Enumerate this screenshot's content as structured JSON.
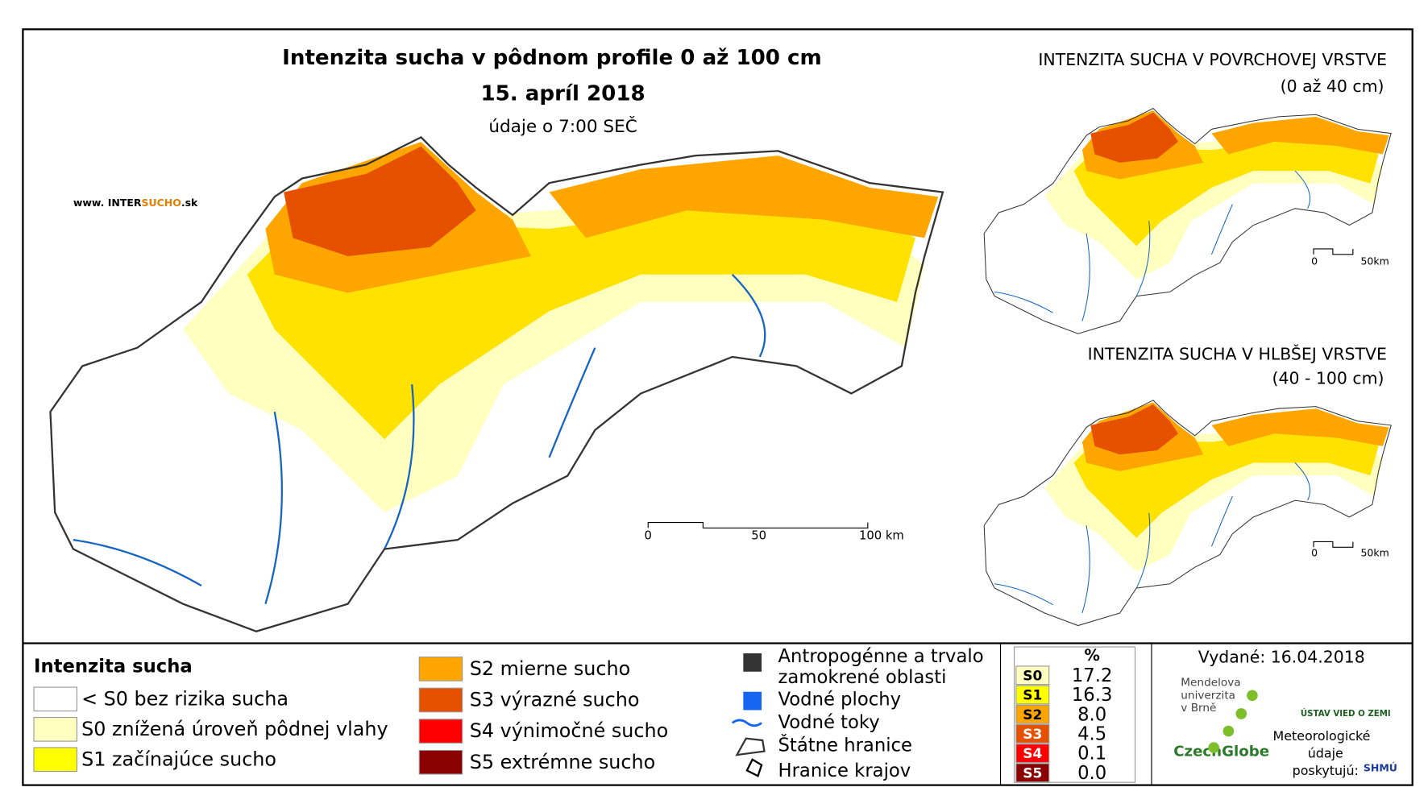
{
  "title": "Intenzita sucha v pôdnom profile 0 až 100 cm",
  "date": "15. apríl 2018",
  "subtitle": "údaje o 7:00 SEČ",
  "website": {
    "prefix": "www. INTER",
    "highlight": "SUCHO",
    "suffix": ".sk"
  },
  "main_scale": [
    "0",
    "50",
    "100 km"
  ],
  "insets": [
    {
      "title": "INTENZITA SUCHA V POVRCHOVEJ VRSTVE",
      "subtitle": "(0 až 40 cm)",
      "scale": [
        "0",
        "50km"
      ]
    },
    {
      "title": "INTENZITA SUCHA V HLBŠEJ VRSTVE",
      "subtitle": "(40 - 100 cm)",
      "scale": [
        "0",
        "50km"
      ]
    }
  ],
  "legend": {
    "title": "Intenzita sucha",
    "items": [
      "< S0 bez rizika sucha",
      "S0 znížená úroveň pôdnej vlahy",
      "S1 začínajúce sucho",
      "S2 mierne sucho",
      "S3 výrazné sucho",
      "S4 výnimočné sucho",
      "S5 extrémne sucho"
    ]
  },
  "layers": [
    [
      "Antropogénne a trvalo",
      "zamokrené oblasti"
    ],
    "Vodné plochy",
    "Vodné toky",
    "Štátne hranice",
    "Hranice krajov"
  ],
  "table": {
    "header": "%",
    "rows": [
      [
        "S0",
        "17.2"
      ],
      [
        "S1",
        "16.3"
      ],
      [
        "S2",
        "8.0"
      ],
      [
        "S3",
        "4.5"
      ],
      [
        "S4",
        "0.1"
      ],
      [
        "S5",
        "0.0"
      ]
    ]
  },
  "issued": "Vydané: 16.04.2018",
  "logos": {
    "mendel": [
      "Mendelova",
      "univerzita",
      "v Brně"
    ],
    "czechglobe": "CzechGlobe",
    "ustav": "ÚSTAV VIED O ZEMI",
    "meteo": [
      "Meteorologické",
      "údaje",
      "poskytujú:"
    ],
    "shmu": "SHMÚ"
  }
}
